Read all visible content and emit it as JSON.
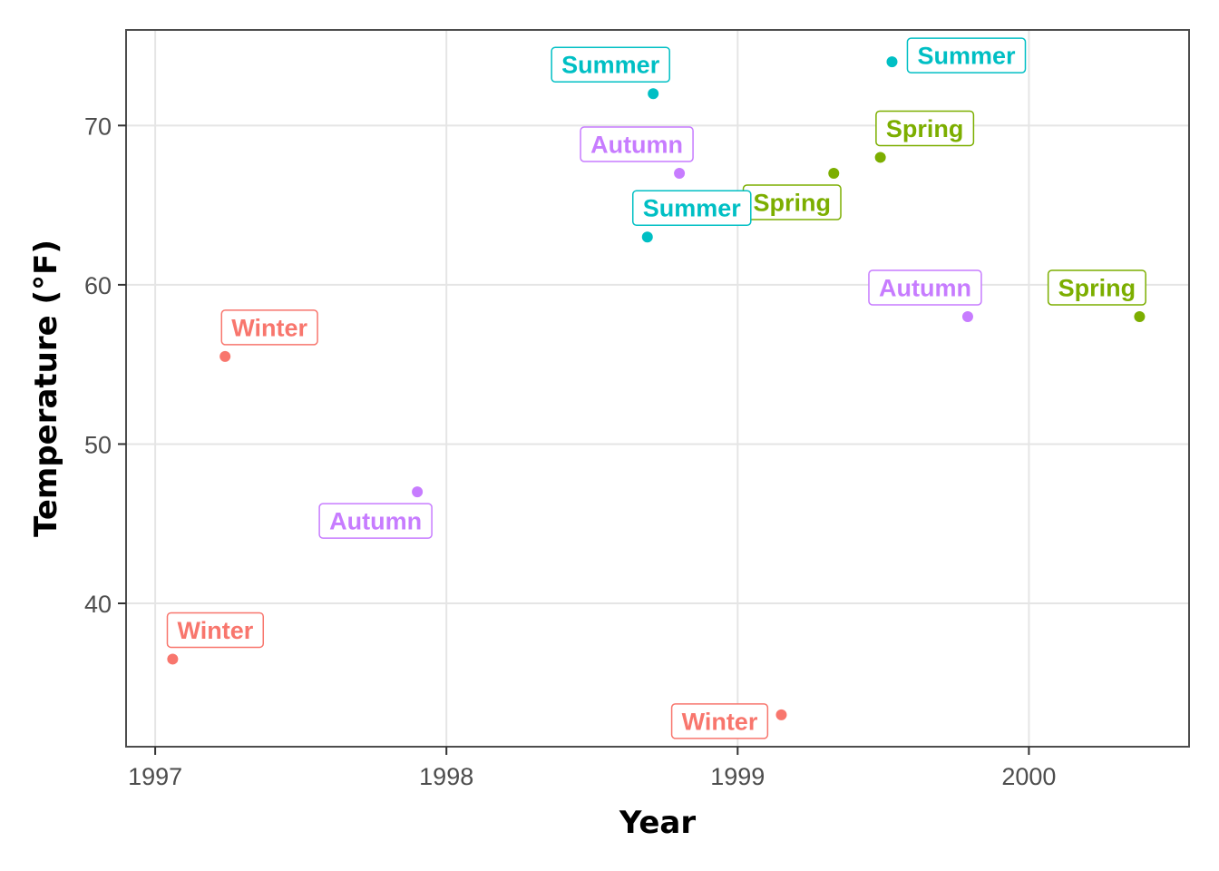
{
  "chart_data": {
    "type": "scatter",
    "title": "",
    "xlabel": "Year",
    "ylabel": "Temperature (°F)",
    "xlim": [
      1996.9,
      2000.55
    ],
    "ylim": [
      31,
      76
    ],
    "x_ticks": [
      1997,
      1998,
      1999,
      2000
    ],
    "y_ticks": [
      40,
      50,
      60,
      70
    ],
    "grid": true,
    "legend": "none",
    "series": [
      {
        "name": "Winter",
        "color": "#F8766D",
        "points": [
          {
            "x": 1997.06,
            "y": 36.5,
            "label": "Winter",
            "label_pos": "above"
          },
          {
            "x": 1997.24,
            "y": 55.5,
            "label": "Winter",
            "label_pos": "above-right"
          },
          {
            "x": 1999.15,
            "y": 33.0,
            "label": "Winter",
            "label_pos": "left"
          }
        ]
      },
      {
        "name": "Spring",
        "color": "#7CAE00",
        "points": [
          {
            "x": 1999.33,
            "y": 67.0,
            "label": "Spring",
            "label_pos": "below-left"
          },
          {
            "x": 1999.49,
            "y": 68.0,
            "label": "Spring",
            "label_pos": "above-right"
          },
          {
            "x": 2000.38,
            "y": 58.0,
            "label": "Spring",
            "label_pos": "above-left"
          }
        ]
      },
      {
        "name": "Summer",
        "color": "#00BFC4",
        "points": [
          {
            "x": 1998.69,
            "y": 63.0,
            "label": "Summer",
            "label_pos": "above-right"
          },
          {
            "x": 1998.71,
            "y": 72.0,
            "label": "Summer",
            "label_pos": "above-left"
          },
          {
            "x": 1999.53,
            "y": 74.0,
            "label": "Summer",
            "label_pos": "right"
          }
        ]
      },
      {
        "name": "Autumn",
        "color": "#C77CFF",
        "points": [
          {
            "x": 1997.9,
            "y": 47.0,
            "label": "Autumn",
            "label_pos": "below-left"
          },
          {
            "x": 1998.8,
            "y": 67.0,
            "label": "Autumn",
            "label_pos": "above-left"
          },
          {
            "x": 1999.79,
            "y": 58.0,
            "label": "Autumn",
            "label_pos": "above-left"
          }
        ]
      }
    ]
  }
}
